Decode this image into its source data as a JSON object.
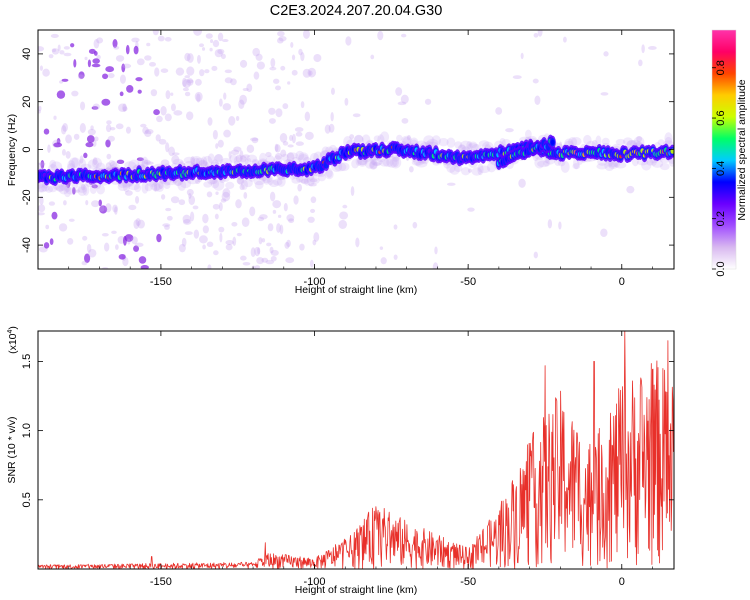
{
  "title": "C2E3.2024.207.20.04.G30",
  "chart_data": [
    {
      "type": "heatmap",
      "xlabel": "Height of straight line (km)",
      "ylabel": "Frequency (Hz)",
      "xlim": [
        -190,
        17
      ],
      "ylim": [
        -50,
        50
      ],
      "x_ticks": [
        -150,
        -100,
        -50,
        0
      ],
      "y_ticks": [
        -40,
        -20,
        0,
        20,
        40
      ],
      "colorbar": {
        "label": "Normalized spectral amplitude",
        "range": [
          0,
          0.95
        ],
        "ticks": [
          0.0,
          0.2,
          0.4,
          0.6,
          0.8
        ],
        "tick_labels": [
          "0.0",
          "0.2",
          "0.4",
          "0.6",
          "0.8"
        ],
        "colors": [
          "#ffffff",
          "#d8b8f0",
          "#a04cff",
          "#6a00ff",
          "#0000ff",
          "#00ccff",
          "#00ff66",
          "#ccff00",
          "#ffcc00",
          "#ff4400",
          "#ff0066",
          "#ff33aa"
        ]
      },
      "ridge_path": [
        {
          "x": -190,
          "y": -12
        },
        {
          "x": -150,
          "y": -10
        },
        {
          "x": -120,
          "y": -9
        },
        {
          "x": -100,
          "y": -8
        },
        {
          "x": -90,
          "y": -1
        },
        {
          "x": -75,
          "y": 0
        },
        {
          "x": -60,
          "y": -2
        },
        {
          "x": -50,
          "y": -4
        },
        {
          "x": -30,
          "y": 1
        },
        {
          "x": -20,
          "y": -2
        },
        {
          "x": -10,
          "y": -1
        },
        {
          "x": 0,
          "y": -2
        },
        {
          "x": 17,
          "y": -1
        }
      ],
      "upper_branch": [
        {
          "x": -40,
          "y": -5
        },
        {
          "x": -30,
          "y": 0
        },
        {
          "x": -22,
          "y": 3
        }
      ]
    },
    {
      "type": "line",
      "xlabel": "Height of straight line (km)",
      "ylabel": "SNR (10 * v/v)",
      "multiplier": "(x10",
      "multiplier_exp": "4",
      "multiplier_close": ")",
      "xlim": [
        -190,
        17
      ],
      "ylim": [
        0,
        1.72
      ],
      "x_ticks": [
        -150,
        -100,
        -50,
        0
      ],
      "y_ticks": [
        0.5,
        1.0,
        1.5
      ],
      "y_tick_labels": [
        "0.5",
        "1.0",
        "1.5"
      ],
      "series": [
        {
          "color": "#e8302a",
          "envelope": [
            {
              "x": -190,
              "amp": 0.03
            },
            {
              "x": -120,
              "amp": 0.05
            },
            {
              "x": -115,
              "amp": 0.12
            },
            {
              "x": -100,
              "amp": 0.08
            },
            {
              "x": -88,
              "amp": 0.25
            },
            {
              "x": -80,
              "amp": 0.48
            },
            {
              "x": -70,
              "amp": 0.35
            },
            {
              "x": -60,
              "amp": 0.25
            },
            {
              "x": -50,
              "amp": 0.15
            },
            {
              "x": -40,
              "amp": 0.45
            },
            {
              "x": -30,
              "amp": 0.95
            },
            {
              "x": -20,
              "amp": 1.3
            },
            {
              "x": -10,
              "amp": 0.9
            },
            {
              "x": 0,
              "amp": 1.35
            },
            {
              "x": 10,
              "amp": 1.55
            },
            {
              "x": 17,
              "amp": 1.4
            }
          ],
          "spikes": [
            {
              "x": -153,
              "y": 0.09
            },
            {
              "x": -116,
              "y": 0.19
            },
            {
              "x": -25,
              "y": 1.47
            },
            {
              "x": -9,
              "y": 1.5
            },
            {
              "x": 1,
              "y": 1.72
            },
            {
              "x": 15,
              "y": 1.65
            }
          ]
        }
      ]
    }
  ]
}
